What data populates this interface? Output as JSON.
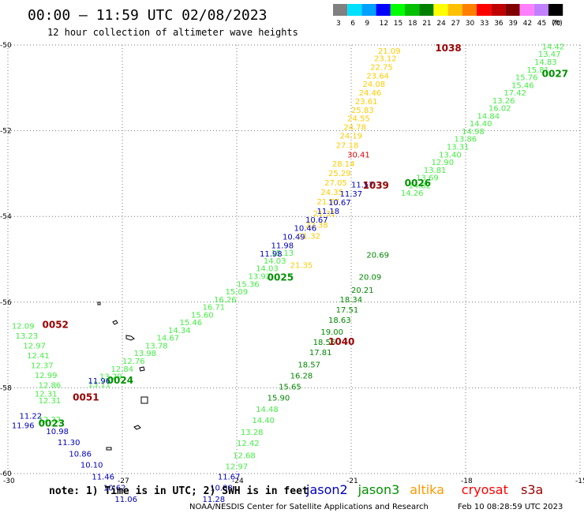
{
  "title": "00:00 – 11:59 UTC 02/08/2023",
  "subtitle": "12 hour collection of altimeter wave heights",
  "colorbar": {
    "labels": [
      "3",
      "6",
      "9",
      "12",
      "15",
      "18",
      "21",
      "24",
      "27",
      "30",
      "33",
      "36",
      "39",
      "42",
      "45",
      "70"
    ],
    "unit": "(ft)",
    "colors": [
      "#808080",
      "#00e0ff",
      "#00a0ff",
      "#0000ff",
      "#00ff00",
      "#00c000",
      "#008000",
      "#ffff00",
      "#ffc000",
      "#ff8000",
      "#ff0000",
      "#c00000",
      "#800000",
      "#ff80ff",
      "#c080ff",
      "#000000"
    ]
  },
  "note": "note: 1) Time is in UTC; 2) SWH is in feet",
  "legend": [
    {
      "name": "jason2",
      "color": "#0000c0"
    },
    {
      "name": "jason3",
      "color": "#009000"
    },
    {
      "name": "altika",
      "color": "#ff9900"
    },
    {
      "name": "cryosat",
      "color": "#ff0000"
    },
    {
      "name": "s3a",
      "color": "#990000"
    }
  ],
  "credit": "NOAA/NESDIS Center for Satellite Applications and Research",
  "timestamp": "Feb 10 08:28:59 UTC 2023",
  "chart_data": {
    "type": "scatter",
    "xlim": [
      -30,
      -15
    ],
    "ylim": [
      -60,
      -50
    ],
    "x_ticks": [
      -30,
      -27,
      -24,
      -21,
      -18,
      -15
    ],
    "y_ticks": [
      -50,
      -52,
      -54,
      -56,
      -58,
      -60
    ],
    "grid": true,
    "ticklabels": {
      "x": [
        "-30",
        "-27",
        "-24",
        "-21",
        "-18",
        "-15"
      ],
      "y": [
        "-50",
        "-52",
        "-54",
        "-56",
        "-58",
        "-60"
      ]
    },
    "pass_labels": [
      {
        "text": "1038",
        "x": -18.8,
        "y": -50.15,
        "color": "#990000"
      },
      {
        "text": "0027",
        "x": -16.0,
        "y": -50.75,
        "color": "#009000"
      },
      {
        "text": "0026",
        "x": -19.6,
        "y": -53.3,
        "color": "#009000"
      },
      {
        "text": "1039",
        "x": -20.7,
        "y": -53.35,
        "color": "#990000"
      },
      {
        "text": "0025",
        "x": -23.2,
        "y": -55.5,
        "color": "#009000"
      },
      {
        "text": "1040",
        "x": -21.6,
        "y": -57.0,
        "color": "#990000"
      },
      {
        "text": "0052",
        "x": -29.1,
        "y": -56.6,
        "color": "#990000"
      },
      {
        "text": "0024",
        "x": -27.4,
        "y": -57.9,
        "color": "#009000"
      },
      {
        "text": "0051",
        "x": -28.3,
        "y": -58.3,
        "color": "#990000"
      },
      {
        "text": "0023",
        "x": -29.2,
        "y": -58.9,
        "color": "#009000"
      }
    ],
    "series": [
      {
        "name": "jason3",
        "color": "#44ee44",
        "points": [
          {
            "x": -16.0,
            "y": -50.1,
            "v": "14.42"
          },
          {
            "x": -16.1,
            "y": -50.28,
            "v": "13.47"
          },
          {
            "x": -16.2,
            "y": -50.46,
            "v": "14.83"
          },
          {
            "x": -16.4,
            "y": -50.64,
            "v": "15.81"
          },
          {
            "x": -16.7,
            "y": -50.82,
            "v": "15.76"
          },
          {
            "x": -16.8,
            "y": -51.0,
            "v": "15.46"
          },
          {
            "x": -17.0,
            "y": -51.18,
            "v": "17.42"
          },
          {
            "x": -17.3,
            "y": -51.36,
            "v": "13.26"
          },
          {
            "x": -17.4,
            "y": -51.54,
            "v": "16.02"
          },
          {
            "x": -17.7,
            "y": -51.72,
            "v": "14.84"
          },
          {
            "x": -17.9,
            "y": -51.9,
            "v": "14.40"
          },
          {
            "x": -18.1,
            "y": -52.08,
            "v": "14.98"
          },
          {
            "x": -18.3,
            "y": -52.26,
            "v": "13.86"
          },
          {
            "x": -18.5,
            "y": -52.44,
            "v": "13.31"
          },
          {
            "x": -18.7,
            "y": -52.62,
            "v": "13.40"
          },
          {
            "x": -18.9,
            "y": -52.8,
            "v": "12.90"
          },
          {
            "x": -19.1,
            "y": -52.98,
            "v": "13.81"
          },
          {
            "x": -19.3,
            "y": -53.16,
            "v": "13.69"
          },
          {
            "x": -19.5,
            "y": -53.34,
            "v": "14.82"
          },
          {
            "x": -19.7,
            "y": -53.52,
            "v": "14.26"
          },
          {
            "x": -23.1,
            "y": -54.92,
            "v": "15.13"
          },
          {
            "x": -23.3,
            "y": -55.1,
            "v": "14.03"
          },
          {
            "x": -23.5,
            "y": -55.28,
            "v": "14.03"
          },
          {
            "x": -23.7,
            "y": -55.46,
            "v": "13.92"
          },
          {
            "x": -24.0,
            "y": -55.64,
            "v": "15.36"
          },
          {
            "x": -24.3,
            "y": -55.82,
            "v": "15.09"
          },
          {
            "x": -24.6,
            "y": -56.0,
            "v": "16.26"
          },
          {
            "x": -24.9,
            "y": -56.18,
            "v": "16.71"
          },
          {
            "x": -25.2,
            "y": -56.36,
            "v": "15.60"
          },
          {
            "x": -25.5,
            "y": -56.54,
            "v": "15.46"
          },
          {
            "x": -25.8,
            "y": -56.72,
            "v": "14.34"
          },
          {
            "x": -26.1,
            "y": -56.9,
            "v": "14.67"
          },
          {
            "x": -26.4,
            "y": -57.08,
            "v": "13.78"
          },
          {
            "x": -26.7,
            "y": -57.26,
            "v": "13.98"
          },
          {
            "x": -27.0,
            "y": -57.44,
            "v": "12.76"
          },
          {
            "x": -27.3,
            "y": -57.62,
            "v": "12.84"
          },
          {
            "x": -27.6,
            "y": -57.8,
            "v": "13.29"
          },
          {
            "x": -27.9,
            "y": -57.98,
            "v": "13.11"
          },
          {
            "x": -29.9,
            "y": -56.62,
            "v": "12.09"
          },
          {
            "x": -29.8,
            "y": -56.85,
            "v": "13.23"
          },
          {
            "x": -29.6,
            "y": -57.08,
            "v": "12.97"
          },
          {
            "x": -29.5,
            "y": -57.31,
            "v": "12.41"
          },
          {
            "x": -29.4,
            "y": -57.54,
            "v": "12.37"
          },
          {
            "x": -29.3,
            "y": -57.77,
            "v": "12.99"
          },
          {
            "x": -29.2,
            "y": -58.0,
            "v": "12.86"
          },
          {
            "x": -29.3,
            "y": -58.2,
            "v": "12.31"
          },
          {
            "x": -29.2,
            "y": -58.36,
            "v": "12.31"
          },
          {
            "x": -29.2,
            "y": -58.8,
            "v": "12.22"
          }
        ]
      },
      {
        "name": "jason3-1040",
        "color": "#008800",
        "points": [
          {
            "x": -20.6,
            "y": -54.96,
            "v": "20.69"
          },
          {
            "x": -20.8,
            "y": -55.48,
            "v": "20.09"
          },
          {
            "x": -21.0,
            "y": -55.78,
            "v": "20.21"
          },
          {
            "x": -21.3,
            "y": -56.0,
            "v": "18.34"
          },
          {
            "x": -21.4,
            "y": -56.24,
            "v": "17.51"
          },
          {
            "x": -21.6,
            "y": -56.48,
            "v": "18.63"
          },
          {
            "x": -21.8,
            "y": -56.76,
            "v": "19.00"
          },
          {
            "x": -22.0,
            "y": -57.0,
            "v": "18.56"
          },
          {
            "x": -22.1,
            "y": -57.24,
            "v": "17.81"
          },
          {
            "x": -22.4,
            "y": -57.52,
            "v": "18.57"
          },
          {
            "x": -22.6,
            "y": -57.78,
            "v": "16.28"
          },
          {
            "x": -22.9,
            "y": -58.04,
            "v": "15.65"
          },
          {
            "x": -23.2,
            "y": -58.3,
            "v": "15.90"
          }
        ]
      },
      {
        "name": "jason3-lower",
        "color": "#44ee44",
        "points": [
          {
            "x": -23.5,
            "y": -58.56,
            "v": "14.48"
          },
          {
            "x": -23.6,
            "y": -58.82,
            "v": "14.40"
          },
          {
            "x": -23.9,
            "y": -59.1,
            "v": "13.28"
          },
          {
            "x": -24.0,
            "y": -59.36,
            "v": "12.42"
          },
          {
            "x": -24.1,
            "y": -59.64,
            "v": "12.68"
          },
          {
            "x": -24.3,
            "y": -59.9,
            "v": "12.97"
          }
        ]
      },
      {
        "name": "altika",
        "color": "#ffcc00",
        "points": [
          {
            "x": -20.3,
            "y": -50.2,
            "v": "21.09"
          },
          {
            "x": -20.4,
            "y": -50.38,
            "v": "23.12"
          },
          {
            "x": -20.5,
            "y": -50.58,
            "v": "22.75"
          },
          {
            "x": -20.6,
            "y": -50.78,
            "v": "23.64"
          },
          {
            "x": -20.7,
            "y": -50.98,
            "v": "24.08"
          },
          {
            "x": -20.8,
            "y": -51.18,
            "v": "24.46"
          },
          {
            "x": -20.9,
            "y": -51.38,
            "v": "23.61"
          },
          {
            "x": -21.0,
            "y": -51.58,
            "v": "25.83"
          },
          {
            "x": -21.1,
            "y": -51.78,
            "v": "24.55"
          },
          {
            "x": -21.2,
            "y": -51.98,
            "v": "24.78"
          },
          {
            "x": -21.3,
            "y": -52.18,
            "v": "24.19"
          },
          {
            "x": -21.4,
            "y": -52.4,
            "v": "27.18"
          },
          {
            "x": -21.5,
            "y": -52.84,
            "v": "28.14"
          },
          {
            "x": -21.6,
            "y": -53.06,
            "v": "25.29"
          },
          {
            "x": -21.7,
            "y": -53.28,
            "v": "27.05"
          },
          {
            "x": -21.8,
            "y": -53.5,
            "v": "24.35"
          },
          {
            "x": -21.9,
            "y": -53.72,
            "v": "21.77"
          },
          {
            "x": -22.0,
            "y": -54.0,
            "v": "21.31"
          },
          {
            "x": -22.2,
            "y": -54.26,
            "v": "22.38"
          },
          {
            "x": -22.4,
            "y": -54.52,
            "v": "21.32"
          },
          {
            "x": -22.6,
            "y": -55.2,
            "v": "21.35"
          }
        ]
      },
      {
        "name": "cryosat",
        "color": "#dd0000",
        "points": [
          {
            "x": -21.1,
            "y": -52.62,
            "v": "30.41"
          }
        ]
      },
      {
        "name": "jason2",
        "color": "#0000bb",
        "points": [
          {
            "x": -21.0,
            "y": -53.32,
            "v": "11.57"
          },
          {
            "x": -21.3,
            "y": -53.54,
            "v": "11.37"
          },
          {
            "x": -21.6,
            "y": -53.74,
            "v": "10.67"
          },
          {
            "x": -21.9,
            "y": -53.94,
            "v": "11.18"
          },
          {
            "x": -22.2,
            "y": -54.14,
            "v": "10.67"
          },
          {
            "x": -22.5,
            "y": -54.34,
            "v": "10.46"
          },
          {
            "x": -22.8,
            "y": -54.54,
            "v": "10.49"
          },
          {
            "x": -23.1,
            "y": -54.74,
            "v": "11.98"
          },
          {
            "x": -23.4,
            "y": -54.94,
            "v": "11.98"
          },
          {
            "x": -27.9,
            "y": -57.9,
            "v": "11.96"
          },
          {
            "x": -29.7,
            "y": -58.72,
            "v": "11.22"
          },
          {
            "x": -29.9,
            "y": -58.94,
            "v": "11.96"
          },
          {
            "x": -29.0,
            "y": -59.08,
            "v": "10.98"
          },
          {
            "x": -28.7,
            "y": -59.34,
            "v": "11.30"
          },
          {
            "x": -28.4,
            "y": -59.6,
            "v": "10.86"
          },
          {
            "x": -28.1,
            "y": -59.86,
            "v": "10.10"
          },
          {
            "x": -27.8,
            "y": -60.14,
            "v": "11.46"
          },
          {
            "x": -27.5,
            "y": -60.4,
            "v": "10.62"
          },
          {
            "x": -27.2,
            "y": -60.66,
            "v": "11.06"
          },
          {
            "x": -24.5,
            "y": -60.14,
            "v": "11.67"
          },
          {
            "x": -24.7,
            "y": -60.4,
            "v": "10.88"
          },
          {
            "x": -24.9,
            "y": -60.66,
            "v": "11.28"
          }
        ]
      }
    ]
  }
}
